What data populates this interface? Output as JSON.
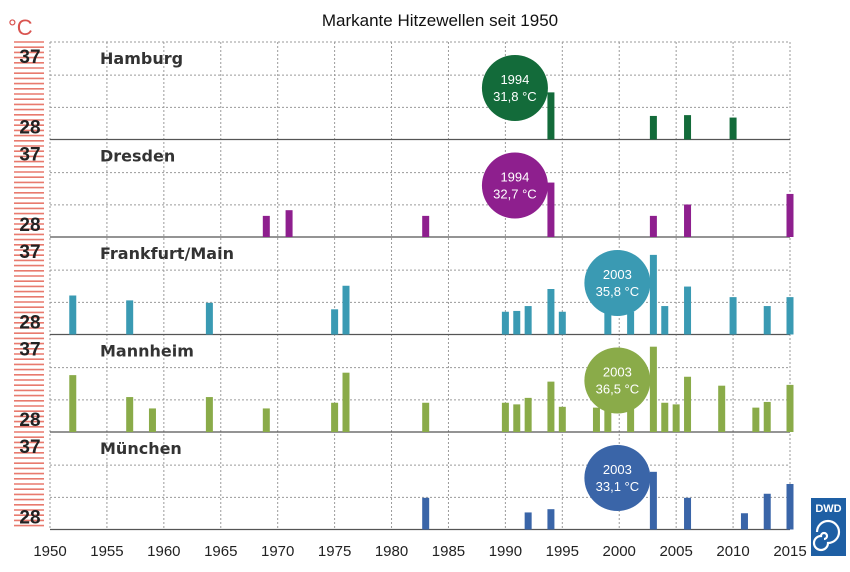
{
  "chart_data": {
    "type": "bar",
    "title": "Markante Hitzewellen seit 1950",
    "unit": "°C",
    "ylim": [
      26,
      38
    ],
    "yticks": [
      28,
      37
    ],
    "xlim": [
      1950,
      2015
    ],
    "xticks": [
      1950,
      1955,
      1960,
      1965,
      1970,
      1975,
      1980,
      1985,
      1990,
      1995,
      2000,
      2005,
      2010,
      2015
    ],
    "grid": true,
    "panels": [
      {
        "name": "Hamburg",
        "color": "#136b3a",
        "bubble_color": "#136b3a",
        "annotation": {
          "year": "1994",
          "value": "31,8 °C"
        },
        "bars": [
          {
            "year": 1994,
            "value": 31.8
          },
          {
            "year": 2003,
            "value": 28.9
          },
          {
            "year": 2006,
            "value": 29.0
          },
          {
            "year": 2010,
            "value": 28.7
          }
        ]
      },
      {
        "name": "Dresden",
        "color": "#8e1f8e",
        "bubble_color": "#8e1f8e",
        "annotation": {
          "year": "1994",
          "value": "32,7 °C"
        },
        "bars": [
          {
            "year": 1969,
            "value": 28.6
          },
          {
            "year": 1971,
            "value": 29.3
          },
          {
            "year": 1983,
            "value": 28.6
          },
          {
            "year": 1994,
            "value": 32.7
          },
          {
            "year": 2003,
            "value": 28.6
          },
          {
            "year": 2006,
            "value": 30.0
          },
          {
            "year": 2015,
            "value": 31.3
          }
        ]
      },
      {
        "name": "Frankfurt/Main",
        "color": "#3a9ab3",
        "bubble_color": "#3a9ab3",
        "annotation": {
          "year": "2003",
          "value": "35,8 °C"
        },
        "bars": [
          {
            "year": 1952,
            "value": 30.8
          },
          {
            "year": 1957,
            "value": 30.2
          },
          {
            "year": 1964,
            "value": 29.9
          },
          {
            "year": 1975,
            "value": 29.1
          },
          {
            "year": 1976,
            "value": 32.0
          },
          {
            "year": 1990,
            "value": 28.8
          },
          {
            "year": 1991,
            "value": 28.9
          },
          {
            "year": 1992,
            "value": 29.5
          },
          {
            "year": 1994,
            "value": 31.6
          },
          {
            "year": 1995,
            "value": 28.8
          },
          {
            "year": 1999,
            "value": 29.4
          },
          {
            "year": 2001,
            "value": 28.8
          },
          {
            "year": 2003,
            "value": 35.8
          },
          {
            "year": 2004,
            "value": 29.5
          },
          {
            "year": 2006,
            "value": 31.9
          },
          {
            "year": 2010,
            "value": 30.6
          },
          {
            "year": 2013,
            "value": 29.5
          },
          {
            "year": 2015,
            "value": 30.6
          }
        ]
      },
      {
        "name": "Mannheim",
        "color": "#8aab49",
        "bubble_color": "#8aab49",
        "annotation": {
          "year": "2003",
          "value": "36,5 °C"
        },
        "bars": [
          {
            "year": 1952,
            "value": 33.0
          },
          {
            "year": 1957,
            "value": 30.3
          },
          {
            "year": 1959,
            "value": 28.9
          },
          {
            "year": 1964,
            "value": 30.3
          },
          {
            "year": 1969,
            "value": 28.9
          },
          {
            "year": 1975,
            "value": 29.6
          },
          {
            "year": 1976,
            "value": 33.3
          },
          {
            "year": 1983,
            "value": 29.6
          },
          {
            "year": 1990,
            "value": 29.6
          },
          {
            "year": 1991,
            "value": 29.4
          },
          {
            "year": 1992,
            "value": 30.2
          },
          {
            "year": 1994,
            "value": 32.2
          },
          {
            "year": 1995,
            "value": 29.1
          },
          {
            "year": 1998,
            "value": 29.0
          },
          {
            "year": 1999,
            "value": 30.7
          },
          {
            "year": 2001,
            "value": 29.6
          },
          {
            "year": 2003,
            "value": 36.5
          },
          {
            "year": 2004,
            "value": 29.6
          },
          {
            "year": 2005,
            "value": 29.4
          },
          {
            "year": 2006,
            "value": 32.8
          },
          {
            "year": 2009,
            "value": 31.7
          },
          {
            "year": 2012,
            "value": 29.0
          },
          {
            "year": 2013,
            "value": 29.7
          },
          {
            "year": 2015,
            "value": 31.8
          }
        ]
      },
      {
        "name": "München",
        "color": "#3a65a8",
        "bubble_color": "#3a65a8",
        "annotation": {
          "year": "2003",
          "value": "33,1 °C"
        },
        "bars": [
          {
            "year": 1983,
            "value": 29.9
          },
          {
            "year": 1992,
            "value": 28.1
          },
          {
            "year": 1994,
            "value": 28.5
          },
          {
            "year": 2003,
            "value": 33.1
          },
          {
            "year": 2006,
            "value": 29.9
          },
          {
            "year": 2011,
            "value": 28.0
          },
          {
            "year": 2013,
            "value": 30.4
          },
          {
            "year": 2015,
            "value": 31.6
          }
        ]
      }
    ]
  },
  "logo": {
    "text": "DWD"
  },
  "colors": {
    "grid": "#9a9a9a",
    "scale_stripes": "#e87a6e",
    "logo_bg": "#1e5fa4"
  }
}
